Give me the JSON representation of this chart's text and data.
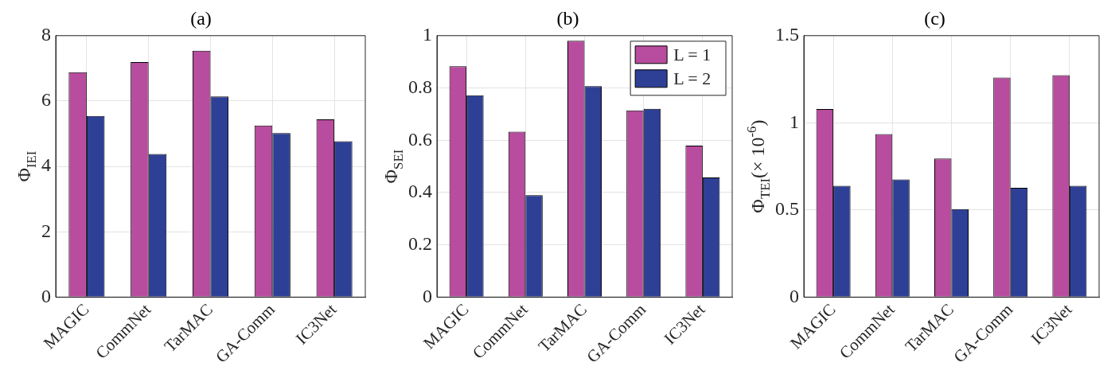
{
  "chart_data": [
    {
      "type": "bar",
      "title": "(a)",
      "ylabel": "Φ$_{IEI}$",
      "categories": [
        "MAGIC",
        "CommNet",
        "TarMAC",
        "GA-Comm",
        "IC3Net"
      ],
      "ylim": [
        0,
        8
      ],
      "yticks": [
        0,
        2,
        4,
        6,
        8
      ],
      "grid": true,
      "legend": false,
      "series": [
        {
          "color": "#b84c9e",
          "values": [
            6.88,
            7.19,
            7.54,
            5.25,
            5.44
          ]
        },
        {
          "color": "#2e3f96",
          "values": [
            5.54,
            4.38,
            6.14,
            5.02,
            4.77
          ]
        }
      ]
    },
    {
      "type": "bar",
      "title": "(b)",
      "ylabel": "Φ$_{SEI}$",
      "categories": [
        "MAGIC",
        "CommNet",
        "TarMAC",
        "GA-Comm",
        "IC3Net"
      ],
      "ylim": [
        0,
        1
      ],
      "yticks": [
        0,
        0.2,
        0.4,
        0.6,
        0.8,
        1
      ],
      "grid": true,
      "legend": "top right",
      "series": [
        {
          "name": "L = 1",
          "color": "#b84c9e",
          "values": [
            0.883,
            0.633,
            0.98,
            0.714,
            0.579
          ]
        },
        {
          "name": "L = 2",
          "color": "#2e3f96",
          "values": [
            0.772,
            0.39,
            0.807,
            0.72,
            0.458
          ]
        }
      ]
    },
    {
      "type": "bar",
      "title": "(c)",
      "ylabel": "Φ$_{TEI}$(× 10$^{-6}$)",
      "categories": [
        "MAGIC",
        "CommNet",
        "TarMAC",
        "GA-Comm",
        "IC3Net"
      ],
      "ylim": [
        0,
        1.5
      ],
      "yticks": [
        0,
        0.5,
        1,
        1.5
      ],
      "grid": true,
      "legend": false,
      "series": [
        {
          "color": "#b84c9e",
          "values": [
            1.079,
            0.935,
            0.795,
            1.259,
            1.273
          ]
        },
        {
          "color": "#2e3f96",
          "values": [
            0.638,
            0.675,
            0.505,
            0.627,
            0.638
          ]
        }
      ]
    }
  ]
}
